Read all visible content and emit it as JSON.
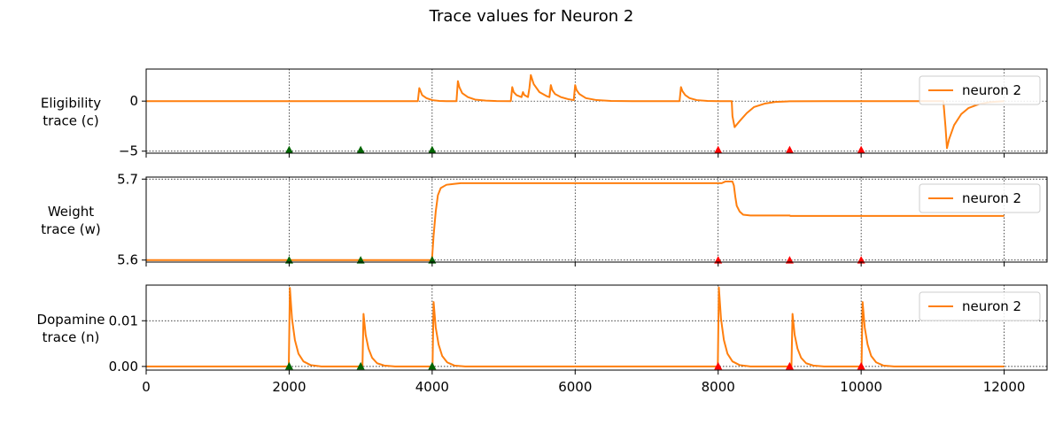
{
  "figure": {
    "title": "Trace values for Neuron 2"
  },
  "colors": {
    "line": "#ff7f0e",
    "reward_marker": "#006400",
    "punish_marker": "#ff0000",
    "grid": "#000000"
  },
  "chart_data": [
    {
      "type": "line",
      "ylabel_lines": [
        "Eligibility",
        "trace (c)"
      ],
      "xlim": [
        0,
        12600
      ],
      "ylim": [
        -5.2,
        3.2
      ],
      "yticks": [
        {
          "value": -5,
          "label": "−5"
        },
        {
          "value": 0,
          "label": "0"
        }
      ],
      "legend": {
        "label": "neuron 2",
        "position": "upper right"
      },
      "grid": true,
      "markers": {
        "y": -4.9,
        "green_x": [
          2000,
          3000,
          4000
        ],
        "red_x": [
          8000,
          9000,
          10000
        ]
      },
      "series": [
        {
          "name": "neuron 2",
          "x": [
            0,
            3800,
            3820,
            3860,
            3920,
            4000,
            4100,
            4200,
            4340,
            4360,
            4380,
            4420,
            4500,
            4600,
            4750,
            4900,
            5100,
            5120,
            5140,
            5180,
            5250,
            5270,
            5290,
            5340,
            5360,
            5380,
            5420,
            5500,
            5600,
            5640,
            5660,
            5680,
            5720,
            5800,
            5900,
            5980,
            6000,
            6020,
            6060,
            6150,
            6300,
            6500,
            6800,
            7100,
            7400,
            7460,
            7480,
            7500,
            7540,
            7600,
            7700,
            7850,
            8000,
            8150,
            8190,
            8200,
            8230,
            8300,
            8400,
            8500,
            8650,
            8800,
            9000,
            9500,
            10000,
            10500,
            11150,
            11180,
            11200,
            11230,
            11300,
            11400,
            11500,
            11650,
            11800,
            12000
          ],
          "y": [
            0,
            0,
            1.3,
            0.6,
            0.3,
            0.1,
            0.02,
            0,
            0,
            2.0,
            1.4,
            0.8,
            0.4,
            0.15,
            0.05,
            0.01,
            0,
            1.4,
            0.9,
            0.6,
            0.4,
            0.9,
            0.6,
            0.4,
            1.3,
            2.6,
            1.7,
            0.9,
            0.5,
            0.4,
            1.6,
            1.1,
            0.7,
            0.4,
            0.2,
            0.1,
            1.6,
            1.1,
            0.7,
            0.3,
            0.1,
            0.02,
            0,
            0,
            0,
            0,
            1.4,
            1.0,
            0.6,
            0.3,
            0.1,
            0.02,
            0,
            0,
            0,
            -1.5,
            -2.6,
            -2.0,
            -1.2,
            -0.6,
            -0.25,
            -0.08,
            -0.02,
            0,
            0,
            0,
            0,
            -2.6,
            -4.7,
            -3.8,
            -2.4,
            -1.3,
            -0.7,
            -0.3,
            -0.1,
            0
          ]
        }
      ]
    },
    {
      "type": "line",
      "ylabel_lines": [
        "Weight",
        "trace (w)"
      ],
      "xlim": [
        0,
        12600
      ],
      "ylim": [
        5.5975,
        5.7025
      ],
      "yticks": [
        {
          "value": 5.6,
          "label": "5.6"
        },
        {
          "value": 5.7,
          "label": "5.7"
        }
      ],
      "legend": {
        "label": "neuron 2",
        "position": "upper right"
      },
      "grid": true,
      "markers": {
        "y": 5.5995,
        "green_x": [
          2000,
          3000,
          4000
        ],
        "red_x": [
          8000,
          9000,
          10000
        ]
      },
      "series": [
        {
          "name": "neuron 2",
          "x": [
            0,
            3990,
            4000,
            4020,
            4050,
            4080,
            4120,
            4200,
            4300,
            4400,
            4500,
            5000,
            6000,
            7000,
            8000,
            8050,
            8100,
            8150,
            8200,
            8220,
            8240,
            8260,
            8300,
            8350,
            8450,
            8600,
            8800,
            9000,
            9010,
            9500,
            10000,
            11000,
            12000
          ],
          "y": [
            5.6,
            5.6,
            5.604,
            5.63,
            5.66,
            5.68,
            5.689,
            5.693,
            5.694,
            5.695,
            5.695,
            5.695,
            5.695,
            5.695,
            5.695,
            5.695,
            5.697,
            5.697,
            5.697,
            5.692,
            5.678,
            5.667,
            5.66,
            5.656,
            5.655,
            5.655,
            5.655,
            5.655,
            5.6545,
            5.6545,
            5.6545,
            5.6545,
            5.6545
          ]
        }
      ]
    },
    {
      "type": "line",
      "ylabel_lines": [
        "Dopamine",
        "trace (n)"
      ],
      "xlim": [
        0,
        12600
      ],
      "ylim": [
        -0.0008,
        0.0178
      ],
      "yticks": [
        {
          "value": 0.0,
          "label": "0.00"
        },
        {
          "value": 0.01,
          "label": "0.01"
        }
      ],
      "legend": {
        "label": "neuron 2",
        "position": "upper right"
      },
      "grid": true,
      "markers": {
        "y": 0.0,
        "green_x": [
          2000,
          3000,
          4000
        ],
        "red_x": [
          8000,
          9000,
          10000
        ]
      },
      "series": [
        {
          "name": "neuron 2",
          "x": [
            0,
            1995,
            2010,
            2040,
            2080,
            2130,
            2200,
            2300,
            2450,
            3025,
            3040,
            3070,
            3110,
            3160,
            3230,
            3330,
            3480,
            4005,
            4020,
            4050,
            4090,
            4140,
            4210,
            4310,
            4460,
            7995,
            8010,
            8040,
            8080,
            8130,
            8200,
            8300,
            8450,
            9025,
            9040,
            9070,
            9110,
            9160,
            9230,
            9330,
            9480,
            10005,
            10020,
            10050,
            10090,
            10140,
            10210,
            10310,
            10460,
            12000
          ],
          "y": [
            0,
            0,
            0.0172,
            0.0104,
            0.0058,
            0.0028,
            0.0011,
            0.0003,
            0,
            0,
            0.0115,
            0.0069,
            0.0039,
            0.0019,
            0.0007,
            0.0002,
            0,
            0,
            0.0141,
            0.0085,
            0.0048,
            0.0023,
            0.0009,
            0.0002,
            0,
            0,
            0.0173,
            0.0104,
            0.0058,
            0.0028,
            0.0011,
            0.0003,
            0,
            0,
            0.0115,
            0.0069,
            0.0039,
            0.0019,
            0.0007,
            0.0002,
            0,
            0,
            0.0141,
            0.0085,
            0.0048,
            0.0023,
            0.0009,
            0.0002,
            0,
            0
          ]
        }
      ]
    }
  ],
  "xaxis": {
    "ticks": [
      {
        "value": 0,
        "label": "0"
      },
      {
        "value": 2000,
        "label": "2000"
      },
      {
        "value": 4000,
        "label": "4000"
      },
      {
        "value": 6000,
        "label": "6000"
      },
      {
        "value": 8000,
        "label": "8000"
      },
      {
        "value": 10000,
        "label": "10000"
      },
      {
        "value": 12000,
        "label": "12000"
      }
    ]
  }
}
